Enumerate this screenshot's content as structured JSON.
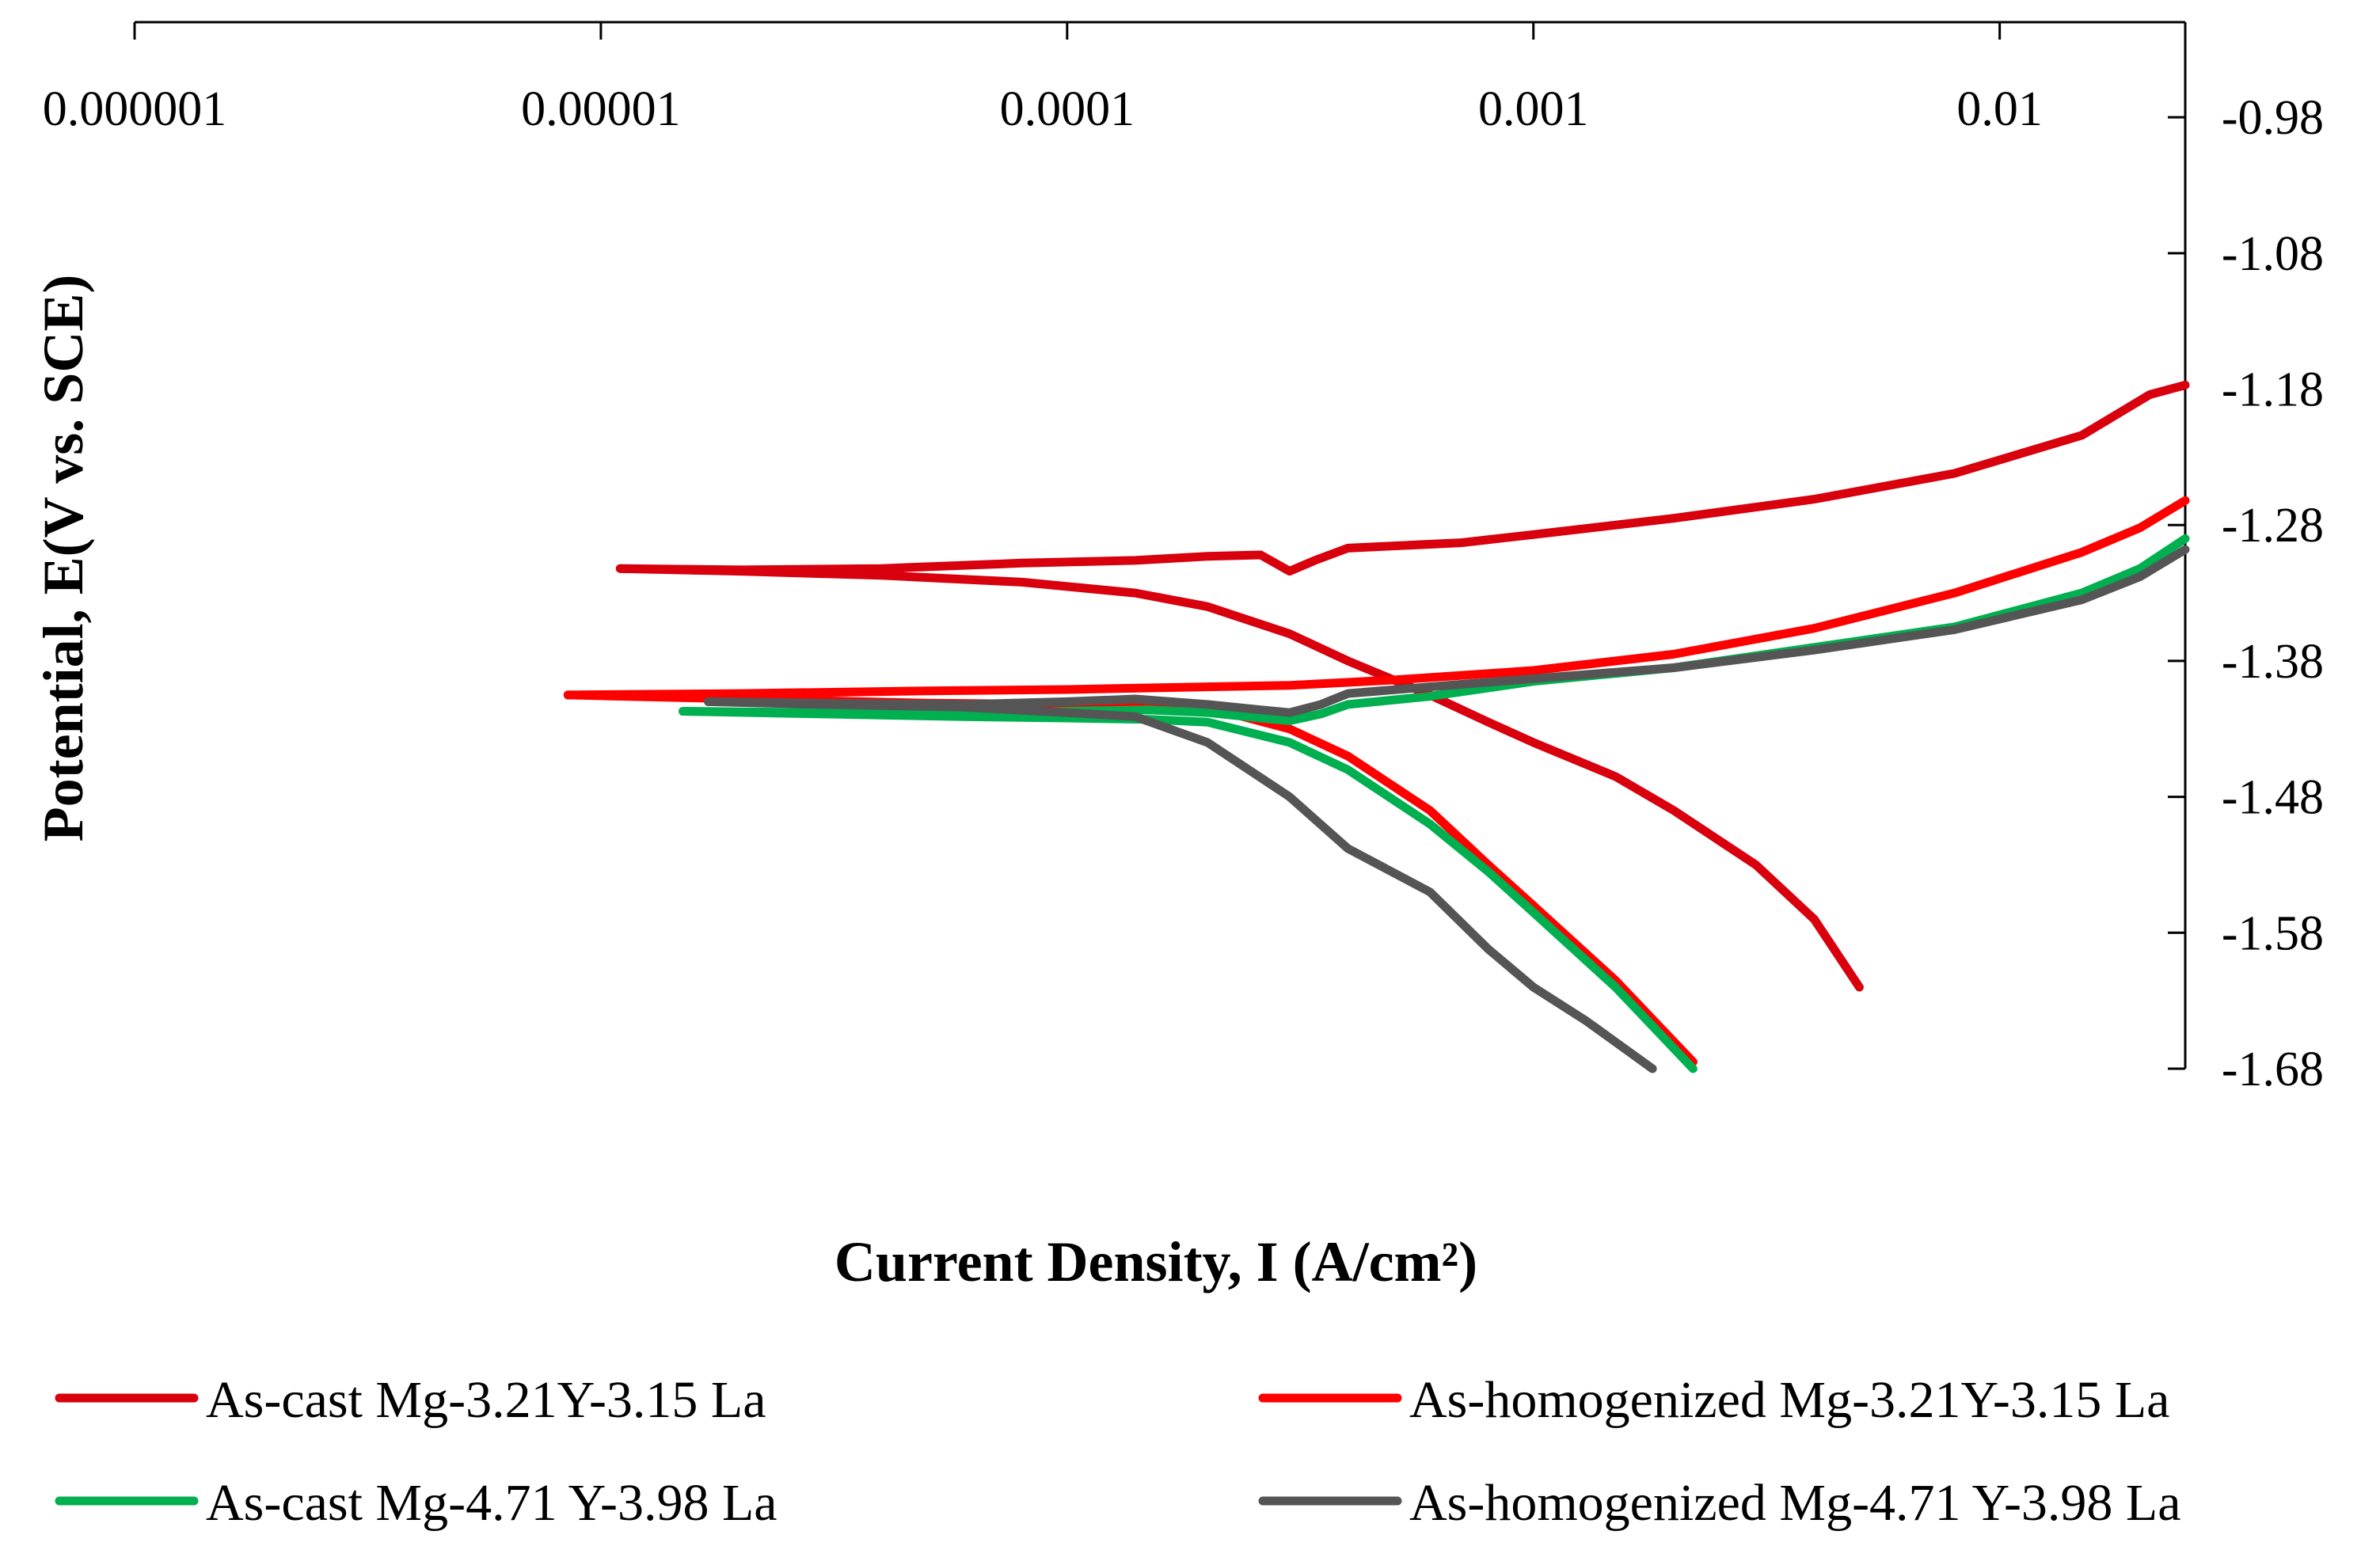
{
  "chart_data": {
    "type": "line",
    "title": "",
    "xlabel": "Current Density, I (A/cm²)",
    "ylabel": "Potential, E(V vs. SCE)",
    "xscale": "log",
    "xlim": [
      1e-06,
      0.025
    ],
    "ylim": [
      -1.68,
      -0.91
    ],
    "x_ticks": [
      {
        "value": 1e-06,
        "label": "0.000001"
      },
      {
        "value": 1e-05,
        "label": "0.00001"
      },
      {
        "value": 0.0001,
        "label": "0.0001"
      },
      {
        "value": 0.001,
        "label": "0.001"
      },
      {
        "value": 0.01,
        "label": "0.01"
      }
    ],
    "y_ticks": [
      {
        "value": -0.98,
        "label": "-0.98"
      },
      {
        "value": -1.08,
        "label": "-1.08"
      },
      {
        "value": -1.18,
        "label": "-1.18"
      },
      {
        "value": -1.28,
        "label": "-1.28"
      },
      {
        "value": -1.38,
        "label": "-1.38"
      },
      {
        "value": -1.48,
        "label": "-1.48"
      },
      {
        "value": -1.58,
        "label": "-1.58"
      },
      {
        "value": -1.68,
        "label": "-1.68"
      }
    ],
    "grid": false,
    "x_axis_position": "top",
    "y_axis_position": "right",
    "legend_position": "bottom",
    "series": [
      {
        "name": "As-cast Mg-3.21Y-3.15 La",
        "color": "#d9000d",
        "branches": [
          {
            "x": [
              1.1e-05,
              2e-05,
              4e-05,
              8e-05,
              0.00014,
              0.0002,
              0.00026,
              0.0003,
              0.00034,
              0.0004,
              0.0007,
              0.001,
              0.002,
              0.004,
              0.008,
              0.015,
              0.021,
              0.025
            ],
            "y": [
              -1.312,
              -1.313,
              -1.312,
              -1.308,
              -1.306,
              -1.303,
              -1.302,
              -1.314,
              -1.306,
              -1.297,
              -1.293,
              -1.287,
              -1.275,
              -1.261,
              -1.242,
              -1.214,
              -1.184,
              -1.177
            ]
          },
          {
            "x": [
              1.1e-05,
              2e-05,
              4e-05,
              8e-05,
              0.00014,
              0.0002,
              0.0003,
              0.0004,
              0.0006,
              0.0008,
              0.001,
              0.0015,
              0.002,
              0.003,
              0.004,
              0.005
            ],
            "y": [
              -1.312,
              -1.314,
              -1.317,
              -1.322,
              -1.33,
              -1.34,
              -1.36,
              -1.38,
              -1.405,
              -1.425,
              -1.44,
              -1.465,
              -1.49,
              -1.53,
              -1.57,
              -1.62
            ]
          }
        ]
      },
      {
        "name": "As-homogenized Mg-3.21Y-3.15 La",
        "color": "#ff0000",
        "branches": [
          {
            "x": [
              8.5e-06,
              2e-05,
              5e-05,
              0.0001,
              0.0002,
              0.0003,
              0.0005,
              0.001,
              0.002,
              0.004,
              0.008,
              0.015,
              0.02,
              0.025
            ],
            "y": [
              -1.405,
              -1.404,
              -1.402,
              -1.401,
              -1.399,
              -1.398,
              -1.394,
              -1.387,
              -1.375,
              -1.356,
              -1.33,
              -1.3,
              -1.282,
              -1.262
            ]
          },
          {
            "x": [
              8.5e-06,
              2e-05,
              5e-05,
              0.0001,
              0.00015,
              0.0002,
              0.0003,
              0.0004,
              0.0006,
              0.0008,
              0.001,
              0.0015,
              0.0022
            ],
            "y": [
              -1.405,
              -1.408,
              -1.411,
              -1.412,
              -1.412,
              -1.414,
              -1.43,
              -1.45,
              -1.49,
              -1.53,
              -1.56,
              -1.615,
              -1.675
            ]
          }
        ]
      },
      {
        "name": "As-cast Mg-4.71 Y-3.98 La",
        "color": "#00b050",
        "branches": [
          {
            "x": [
              1.5e-05,
              3e-05,
              6e-05,
              0.0001,
              0.00015,
              0.0002,
              0.00026,
              0.0003,
              0.00035,
              0.0004,
              0.0006,
              0.001,
              0.002,
              0.004,
              0.008,
              0.015,
              0.02,
              0.025
            ],
            "y": [
              -1.417,
              -1.418,
              -1.419,
              -1.417,
              -1.416,
              -1.418,
              -1.422,
              -1.424,
              -1.419,
              -1.412,
              -1.406,
              -1.395,
              -1.385,
              -1.37,
              -1.355,
              -1.33,
              -1.312,
              -1.29
            ]
          },
          {
            "x": [
              1.5e-05,
              3e-05,
              6e-05,
              0.0001,
              0.00015,
              0.0002,
              0.0003,
              0.0004,
              0.0006,
              0.0008,
              0.001,
              0.0015,
              0.0022
            ],
            "y": [
              -1.417,
              -1.419,
              -1.421,
              -1.422,
              -1.423,
              -1.425,
              -1.44,
              -1.46,
              -1.5,
              -1.535,
              -1.565,
              -1.62,
              -1.68
            ]
          }
        ]
      },
      {
        "name": "As-homogenized Mg-4.71 Y-3.98 La",
        "color": "#555555",
        "branches": [
          {
            "x": [
              1.7e-05,
              3e-05,
              6e-05,
              0.0001,
              0.00014,
              0.0002,
              0.00026,
              0.0003,
              0.00035,
              0.0004,
              0.0006,
              0.001,
              0.002,
              0.004,
              0.008,
              0.015,
              0.02,
              0.025
            ],
            "y": [
              -1.41,
              -1.411,
              -1.412,
              -1.41,
              -1.408,
              -1.412,
              -1.416,
              -1.418,
              -1.412,
              -1.404,
              -1.399,
              -1.393,
              -1.385,
              -1.372,
              -1.357,
              -1.335,
              -1.318,
              -1.298
            ]
          },
          {
            "x": [
              1.7e-05,
              3e-05,
              6e-05,
              0.0001,
              0.00014,
              0.0002,
              0.00025,
              0.0003,
              0.0004,
              0.0006,
              0.0008,
              0.001,
              0.0013,
              0.0018
            ],
            "y": [
              -1.41,
              -1.412,
              -1.414,
              -1.418,
              -1.421,
              -1.44,
              -1.462,
              -1.48,
              -1.518,
              -1.55,
              -1.592,
              -1.62,
              -1.645,
              -1.68
            ]
          }
        ]
      }
    ]
  }
}
